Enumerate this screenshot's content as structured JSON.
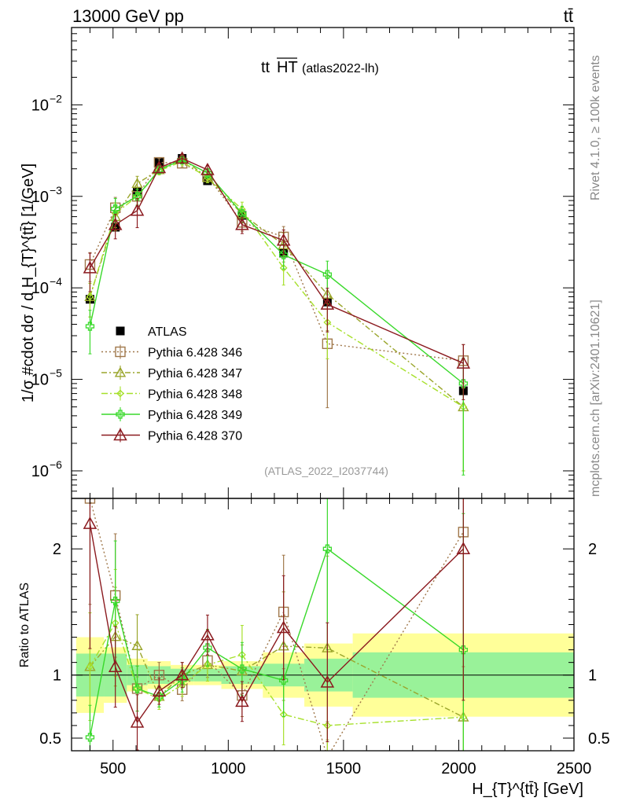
{
  "chart_data": {
    "type": "line",
    "header_left": "13000 GeV pp",
    "header_right": "tt̄",
    "title_main": "tt",
    "title_over": "HT",
    "title_paren": "(atlas2022-lh)",
    "analysis_id": "(ATLAS_2022_I2037744)",
    "side_text_1": "Rivet 4.1.0, ≥ 100k events",
    "side_text_2": "mcplots.cern.ch [arXiv:2401.10621]",
    "ylabel": "1/σ #cdot dσ / d H_{T}^{tt̄} [1/GeV]",
    "ylabel_ratio": "Ratio to ATLAS",
    "xlabel": "H_{T}^{tt̄} [GeV]",
    "xlim": [
      320,
      2500
    ],
    "ylim": [
      5e-07,
      0.07
    ],
    "yscale": "log",
    "ratio_ylim": [
      0.4,
      2.4
    ],
    "x_ticks": [
      500,
      1000,
      1500,
      2000,
      2500
    ],
    "x_tick_labels": [
      "500",
      "1000",
      "1500",
      "2000",
      "2500"
    ],
    "y_ticks": [
      1e-06,
      1e-05,
      0.0001,
      0.001,
      0.01
    ],
    "y_tick_labels": [
      {
        "base": "10",
        "exp": "−6"
      },
      {
        "base": "10",
        "exp": "−5"
      },
      {
        "base": "10",
        "exp": "−4"
      },
      {
        "base": "10",
        "exp": "−3"
      },
      {
        "base": "10",
        "exp": "−2"
      }
    ],
    "ratio_ticks": [
      0.5,
      1,
      2
    ],
    "ratio_tick_labels": [
      "0.5",
      "1",
      "2"
    ],
    "x": [
      400,
      510,
      605,
      700,
      800,
      910,
      1060,
      1240,
      1430,
      2020
    ],
    "bin_edges": [
      340,
      460,
      560,
      650,
      750,
      850,
      970,
      1150,
      1330,
      1540,
      2500
    ],
    "atlas": {
      "name": "ATLAS",
      "values": [
        7.5e-05,
        0.00046,
        0.00112,
        0.00235,
        0.0026,
        0.00148,
        0.00062,
        0.00024,
        7e-05,
        7.5e-06
      ],
      "band_inner": [
        0.17,
        0.17,
        0.08,
        0.07,
        0.05,
        0.05,
        0.07,
        0.09,
        0.13,
        0.18
      ],
      "band_outer": [
        0.3,
        0.22,
        0.13,
        0.11,
        0.08,
        0.08,
        0.11,
        0.18,
        0.25,
        0.33
      ]
    },
    "series": [
      {
        "name": "Pythia 6.428 346",
        "color": "#a0784b",
        "dash": "2,3",
        "marker": "square",
        "values": [
          0.00018,
          0.00075,
          0.001,
          0.00235,
          0.0023,
          0.00165,
          0.00052,
          0.00036,
          2.45e-05,
          1.6e-05
        ],
        "rel_err": [
          0.35,
          0.3,
          0.2,
          0.1,
          0.1,
          0.12,
          0.2,
          0.3,
          0.8,
          0.5
        ]
      },
      {
        "name": "Pythia 6.428 347",
        "color": "#9aa52b",
        "dash": "7,3,2,3",
        "marker": "triangle",
        "values": [
          8e-05,
          0.0006,
          0.00138,
          0.00195,
          0.0026,
          0.0016,
          0.00064,
          0.000295,
          8.5e-05,
          5e-06
        ],
        "rel_err": [
          0.4,
          0.3,
          0.2,
          0.1,
          0.1,
          0.12,
          0.2,
          0.35,
          0.6,
          0.8
        ]
      },
      {
        "name": "Pythia 6.428 348",
        "color": "#a6e02a",
        "dash": "8,3,2,3",
        "marker": "diamond",
        "values": [
          8e-05,
          0.00065,
          0.001,
          0.0019,
          0.0024,
          0.0016,
          0.00072,
          0.000165,
          4.2e-05,
          5e-06
        ],
        "rel_err": [
          0.4,
          0.3,
          0.2,
          0.1,
          0.1,
          0.12,
          0.2,
          0.35,
          0.6,
          0.8
        ]
      },
      {
        "name": "Pythia 6.428 349",
        "color": "#39d92b",
        "dash": "",
        "marker": "cross",
        "values": [
          3.8e-05,
          0.00073,
          0.001,
          0.00195,
          0.0025,
          0.0018,
          0.00065,
          0.00023,
          0.00014,
          9e-06
        ],
        "rel_err": [
          0.5,
          0.3,
          0.2,
          0.1,
          0.1,
          0.12,
          0.2,
          0.3,
          0.4,
          0.9
        ]
      },
      {
        "name": "Pythia 6.428 370",
        "color": "#8b1a1f",
        "dash": "",
        "marker": "triangle-open",
        "values": [
          0.000165,
          0.00049,
          0.0007,
          0.00205,
          0.0026,
          0.00195,
          0.00049,
          0.00033,
          6.6e-05,
          1.5e-05
        ],
        "rel_err": [
          0.45,
          0.3,
          0.35,
          0.12,
          0.1,
          0.12,
          0.2,
          0.3,
          0.5,
          0.6
        ]
      }
    ],
    "legend_placement": "lower-left"
  }
}
